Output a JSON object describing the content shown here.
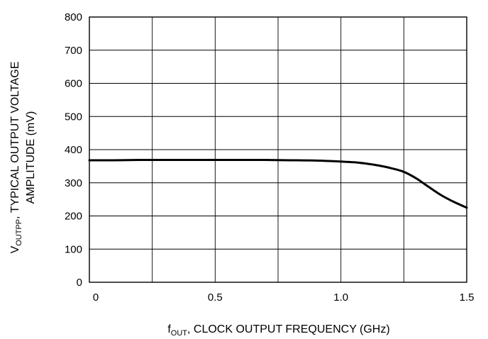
{
  "chart_data": {
    "type": "line",
    "xlabel": {
      "symbol": "f",
      "subscript": "OUT",
      "text": ", CLOCK OUTPUT FREQUENCY (GHz)"
    },
    "ylabel": {
      "symbol": "V",
      "subscript": "OUTPP",
      "line1": ", TYPICAL OUTPUT VOLTAGE",
      "line2": "AMPLITUDE (mV)"
    },
    "xlim": [
      0,
      1.5
    ],
    "ylim": [
      0,
      800
    ],
    "x_ticks": [
      0,
      0.5,
      1.0,
      1.5
    ],
    "x_tick_labels": [
      "0",
      "0.5",
      "1.0",
      "1.5"
    ],
    "x_grid": [
      0,
      0.25,
      0.5,
      0.75,
      1.0,
      1.25,
      1.5
    ],
    "y_ticks": [
      0,
      100,
      200,
      300,
      400,
      500,
      600,
      700,
      800
    ],
    "y_tick_labels": [
      "0",
      "100",
      "200",
      "300",
      "400",
      "500",
      "600",
      "700",
      "800"
    ],
    "grid": true,
    "line_color": "#000000",
    "series": [
      {
        "x": [
          0,
          0.1,
          0.2,
          0.3,
          0.4,
          0.5,
          0.6,
          0.7,
          0.8,
          0.9,
          1.0,
          1.05,
          1.1,
          1.15,
          1.2,
          1.25,
          1.3,
          1.35,
          1.4,
          1.45,
          1.5
        ],
        "values": [
          368,
          368,
          369,
          369,
          369,
          369,
          369,
          369,
          368,
          367,
          364,
          362,
          358,
          352,
          344,
          333,
          313,
          287,
          262,
          242,
          225
        ]
      }
    ]
  }
}
